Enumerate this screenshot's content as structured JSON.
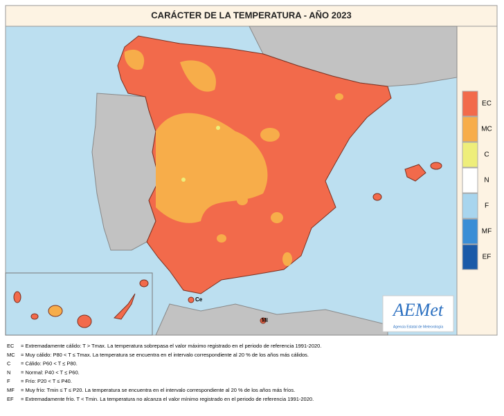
{
  "title": "CARÁCTER DE LA TEMPERATURA - AÑO  2023",
  "legend": [
    {
      "code": "EC",
      "color": "#f26a4b"
    },
    {
      "code": "MC",
      "color": "#f7ad4a"
    },
    {
      "code": "C",
      "color": "#eeee7a"
    },
    {
      "code": "N",
      "color": "#ffffff"
    },
    {
      "code": "F",
      "color": "#a8d5ee"
    },
    {
      "code": "MF",
      "color": "#3a8ed6"
    },
    {
      "code": "EF",
      "color": "#1a5aa8"
    }
  ],
  "map_labels": {
    "ceuta": "Ce",
    "melilla": "Ml"
  },
  "logo": {
    "name": "AEMet",
    "subtitle": "Agencia Estatal de Meteorología"
  },
  "footnotes": [
    {
      "code": "EC",
      "text": "= Extremadamente cálido: T > Tmax. La temperatura sobrepasa el valor máximo registrado en el periodo de referencia 1991-2020."
    },
    {
      "code": "MC",
      "text": "= Muy cálido: P80 < T ≤ Tmax. La temperatura se encuentra en el intervalo correspondiente al 20 % de los años más cálidos."
    },
    {
      "code": "C",
      "text": "= Cálido: P60 < T ≤ P80."
    },
    {
      "code": "N",
      "text": "= Normal: P40 < T ≤ P60."
    },
    {
      "code": "F",
      "text": "= Frío: P20 < T ≤ P40."
    },
    {
      "code": "MF",
      "text": "= Muy frío: Tmin ≤ T ≤ P20. La temperatura se encuentra en el intervalo correspondiente al 20 % de los años más fríos."
    },
    {
      "code": "EF",
      "text": "= Extremadamente frío. T < Tmin. La temperatura no alcanza el valor mínimo registrado en el periodo de referencia 1991-2020."
    }
  ]
}
